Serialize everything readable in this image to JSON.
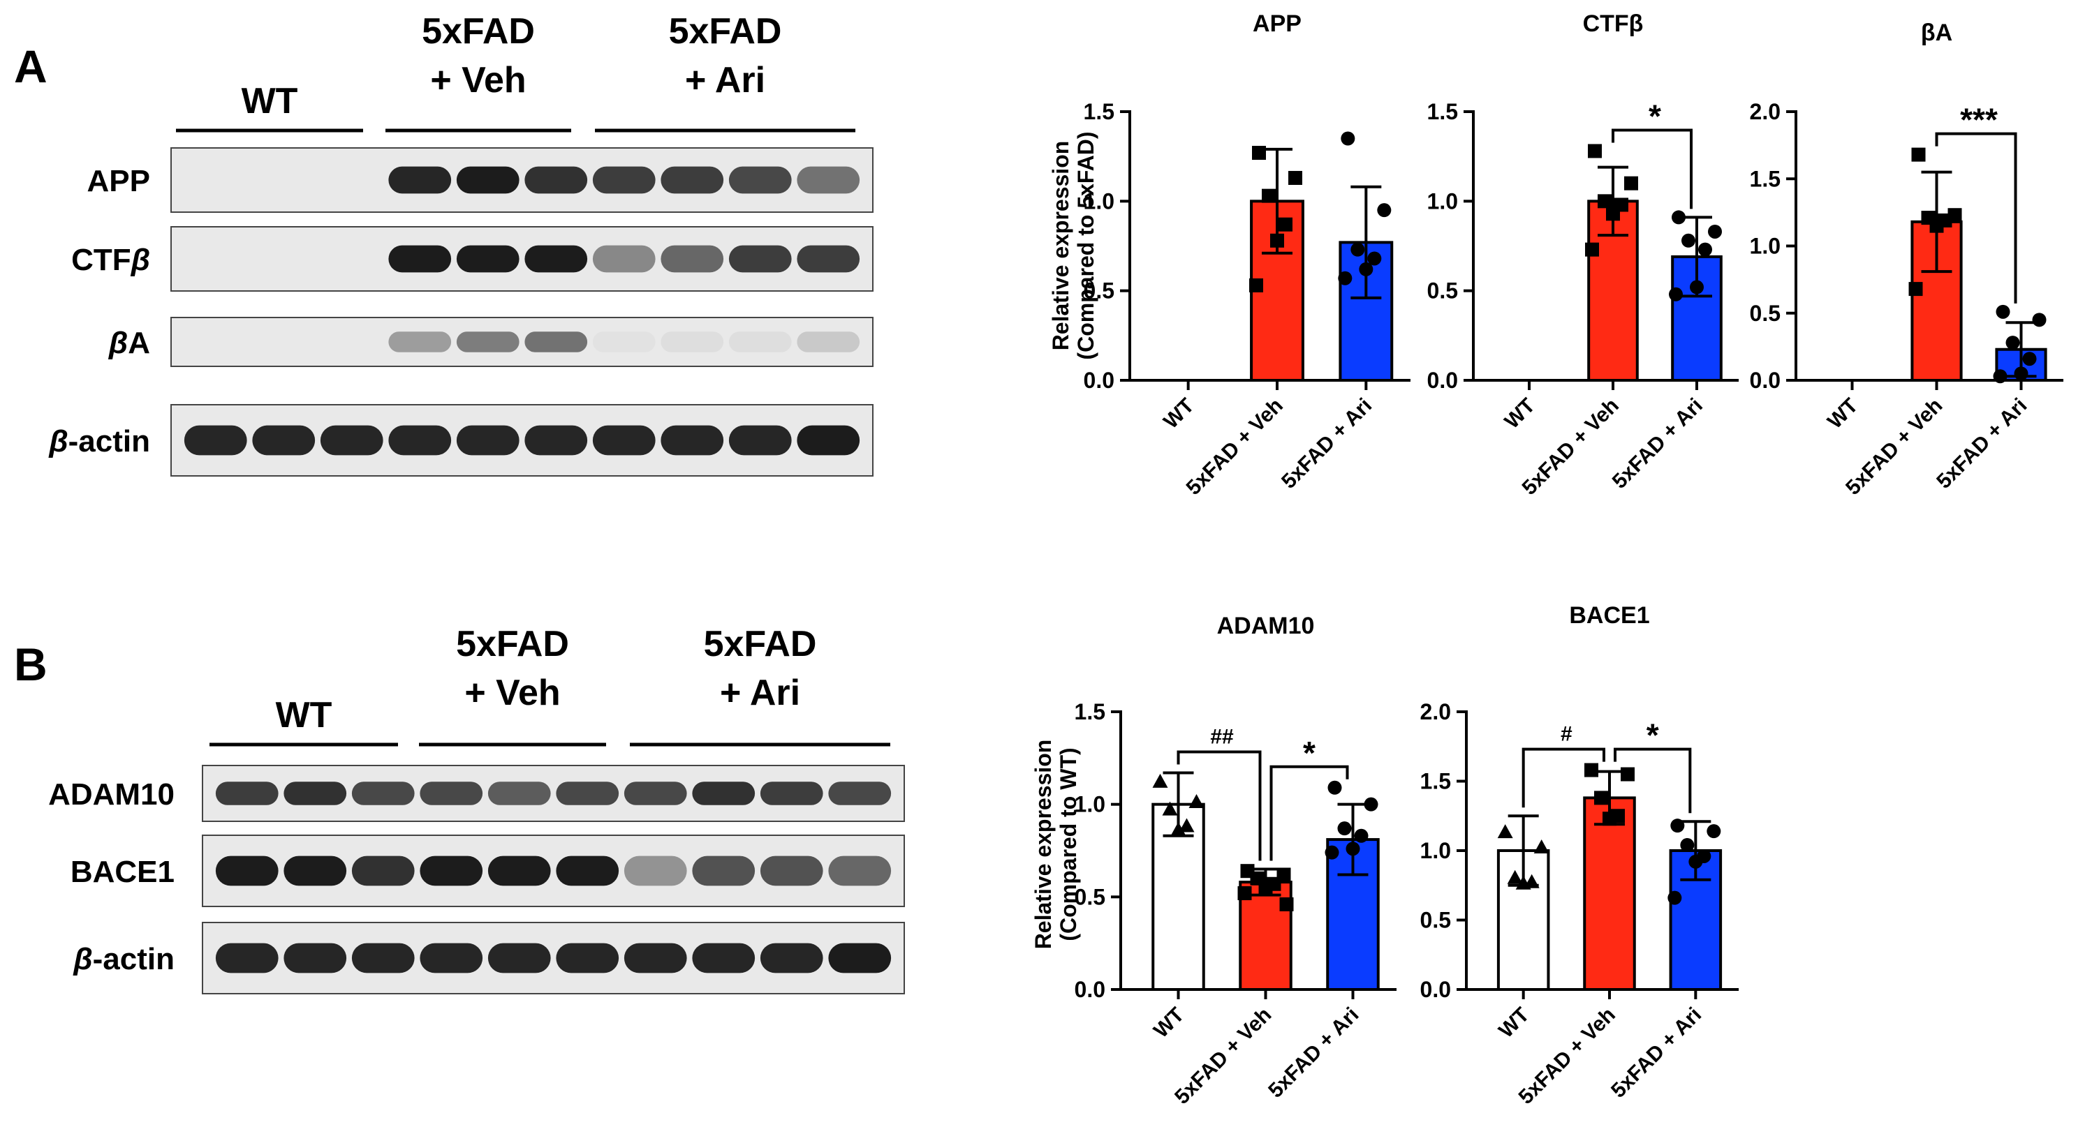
{
  "panels": {
    "A": {
      "letter": "A",
      "blot": {
        "groups": [
          {
            "label_lines": [
              "WT"
            ],
            "lanes": 3
          },
          {
            "label_lines": [
              "5xFAD",
              "+ Veh"
            ],
            "lanes": 3
          },
          {
            "label_lines": [
              "5xFAD",
              "+ Ari"
            ],
            "lanes": 4
          }
        ],
        "rows": [
          {
            "label": "APP",
            "italic_prefix": "",
            "bands": [
              0,
              0,
              0,
              0.9,
              0.95,
              0.85,
              0.8,
              0.8,
              0.75,
              0.55
            ]
          },
          {
            "label": "CTF",
            "italic_prefix": "",
            "italic_suffix": "β",
            "bands": [
              0,
              0,
              0,
              0.95,
              0.95,
              0.95,
              0.45,
              0.6,
              0.8,
              0.8
            ]
          },
          {
            "label": "A",
            "italic_prefix": "β",
            "bands": [
              0,
              0,
              0,
              0.35,
              0.5,
              0.55,
              0.03,
              0.05,
              0.05,
              0.15
            ]
          },
          {
            "label": "-actin",
            "italic_prefix": "β",
            "bands": [
              0.9,
              0.9,
              0.9,
              0.9,
              0.9,
              0.9,
              0.9,
              0.9,
              0.9,
              0.95
            ]
          }
        ]
      }
    },
    "B": {
      "letter": "B",
      "blot": {
        "groups": [
          {
            "label_lines": [
              "WT"
            ],
            "lanes": 3
          },
          {
            "label_lines": [
              "5xFAD",
              "+ Veh"
            ],
            "lanes": 3
          },
          {
            "label_lines": [
              "5xFAD",
              "+ Ari"
            ],
            "lanes": 4
          }
        ],
        "rows": [
          {
            "label": "ADAM10",
            "italic_prefix": "",
            "bands": [
              0.8,
              0.85,
              0.75,
              0.75,
              0.65,
              0.75,
              0.75,
              0.85,
              0.8,
              0.75
            ]
          },
          {
            "label": "BACE1",
            "italic_prefix": "",
            "bands": [
              0.95,
              0.95,
              0.85,
              0.95,
              0.95,
              0.95,
              0.4,
              0.7,
              0.7,
              0.6
            ]
          },
          {
            "label": "-actin",
            "italic_prefix": "β",
            "bands": [
              0.9,
              0.9,
              0.9,
              0.9,
              0.9,
              0.9,
              0.9,
              0.9,
              0.9,
              0.95
            ]
          }
        ]
      }
    }
  },
  "chart_data": [
    {
      "type": "bar",
      "title": "APP",
      "ylabel_lines": [
        "Relative expression",
        "(Compared to 5xFAD)"
      ],
      "categories": [
        "WT",
        "5xFAD + Veh",
        "5xFAD + Ari"
      ],
      "ylim": [
        0,
        1.5
      ],
      "yticks": [
        "0.0",
        "0.5",
        "1.0",
        "1.5"
      ],
      "bar_colors": [
        "#ffffff",
        "#ff2a14",
        "#0a3cff"
      ],
      "values": [
        null,
        1.0,
        0.77
      ],
      "errors": [
        null,
        0.29,
        0.31
      ],
      "markers": [
        "triangle",
        "square",
        "circle"
      ],
      "points": [
        [],
        [
          1.27,
          1.13,
          1.03,
          0.87,
          0.78,
          0.53
        ],
        [
          1.35,
          0.95,
          0.73,
          0.68,
          0.62,
          0.57
        ]
      ],
      "significance": []
    },
    {
      "type": "bar",
      "title": "CTFβ",
      "categories": [
        "WT",
        "5xFAD + Veh",
        "5xFAD + Ari"
      ],
      "ylim": [
        0,
        1.5
      ],
      "yticks": [
        "0.0",
        "0.5",
        "1.0",
        "1.5"
      ],
      "bar_colors": [
        "#ffffff",
        "#ff2a14",
        "#0a3cff"
      ],
      "values": [
        null,
        1.0,
        0.69
      ],
      "errors": [
        null,
        0.19,
        0.22
      ],
      "markers": [
        "triangle",
        "square",
        "circle"
      ],
      "points": [
        [],
        [
          1.28,
          1.1,
          1.0,
          0.98,
          0.93,
          0.73
        ],
        [
          0.91,
          0.83,
          0.78,
          0.73,
          0.52,
          0.48
        ]
      ],
      "significance": [
        {
          "from": 1,
          "to": 2,
          "label": "*"
        }
      ]
    },
    {
      "type": "bar",
      "title": "βA",
      "categories": [
        "WT",
        "5xFAD + Veh",
        "5xFAD + Ari"
      ],
      "ylim": [
        0,
        2.0
      ],
      "yticks": [
        "0.0",
        "0.5",
        "1.0",
        "1.5",
        "2.0"
      ],
      "bar_colors": [
        "#ffffff",
        "#ff2a14",
        "#0a3cff"
      ],
      "values": [
        null,
        1.18,
        0.23
      ],
      "errors": [
        null,
        0.37,
        0.2
      ],
      "markers": [
        "triangle",
        "square",
        "circle"
      ],
      "points": [
        [],
        [
          1.68,
          1.23,
          1.21,
          1.19,
          1.15,
          0.68
        ],
        [
          0.51,
          0.45,
          0.28,
          0.16,
          0.05,
          0.03
        ]
      ],
      "significance": [
        {
          "from": 1,
          "to": 2,
          "label": "***"
        }
      ]
    },
    {
      "type": "bar",
      "title": "ADAM10",
      "ylabel_lines": [
        "Relative expression",
        "(Compared to WT)"
      ],
      "categories": [
        "WT",
        "5xFAD + Veh",
        "5xFAD + Ari"
      ],
      "ylim": [
        0,
        1.5
      ],
      "yticks": [
        "0.0",
        "0.5",
        "1.0",
        "1.5"
      ],
      "bar_colors": [
        "#ffffff",
        "#ff2a14",
        "#0a3cff"
      ],
      "values": [
        1.0,
        0.58,
        0.81
      ],
      "errors": [
        0.17,
        0.07,
        0.19
      ],
      "markers": [
        "triangle",
        "square",
        "circle"
      ],
      "points": [
        [
          1.12,
          1.01,
          0.97,
          0.88,
          0.86
        ],
        [
          0.64,
          0.62,
          0.6,
          0.57,
          0.55,
          0.52,
          0.46
        ],
        [
          1.09,
          1.0,
          0.87,
          0.83,
          0.76,
          0.74
        ]
      ],
      "significance": [
        {
          "from": 0,
          "to": 1,
          "label": "##"
        },
        {
          "from": 1,
          "to": 2,
          "label": "*"
        }
      ]
    },
    {
      "type": "bar",
      "title": "BACE1",
      "categories": [
        "WT",
        "5xFAD + Veh",
        "5xFAD + Ari"
      ],
      "ylim": [
        0,
        2.0
      ],
      "yticks": [
        "0.0",
        "0.5",
        "1.0",
        "1.5",
        "2.0"
      ],
      "bar_colors": [
        "#ffffff",
        "#ff2a14",
        "#0a3cff"
      ],
      "values": [
        1.0,
        1.38,
        1.0
      ],
      "errors": [
        0.25,
        0.19,
        0.21
      ],
      "markers": [
        "triangle",
        "square",
        "circle"
      ],
      "points": [
        [
          1.13,
          1.02,
          0.8,
          0.77,
          0.76
        ],
        [
          1.58,
          1.55,
          1.38,
          1.25,
          1.23
        ],
        [
          1.18,
          1.14,
          1.04,
          0.96,
          0.92,
          0.66
        ]
      ],
      "significance": [
        {
          "from": 0,
          "to": 1,
          "label": "#"
        },
        {
          "from": 1,
          "to": 2,
          "label": "*"
        }
      ]
    }
  ]
}
